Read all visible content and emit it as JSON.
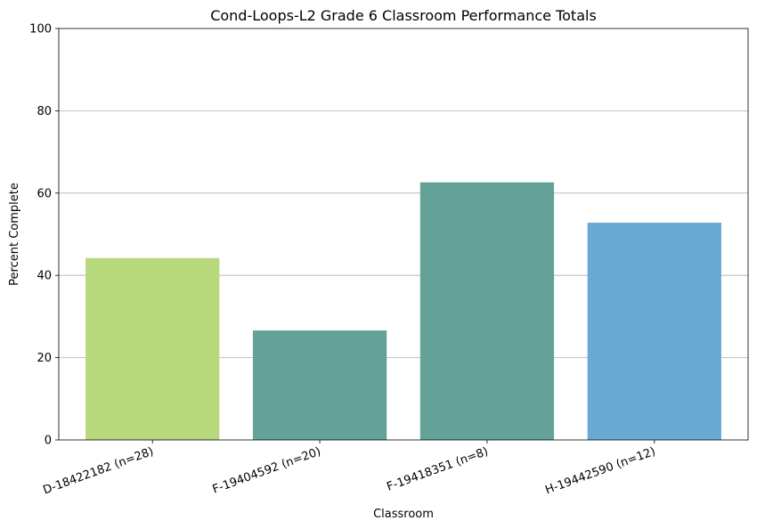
{
  "chart_data": {
    "type": "bar",
    "title": "Cond-Loops-L2 Grade 6 Classroom Performance Totals",
    "xlabel": "Classroom",
    "ylabel": "Percent Complete",
    "categories": [
      "D-18422182 (n=28)",
      "F-19404592 (n=20)",
      "F-19418351 (n=8)",
      "H-19442590 (n=12)"
    ],
    "values": [
      44.2,
      26.6,
      62.6,
      52.8
    ],
    "colors": [
      "#b8d87c",
      "#64a198",
      "#64a198",
      "#6ba9d5"
    ],
    "ylim": [
      0,
      100
    ],
    "yticks": [
      0,
      20,
      40,
      60,
      80,
      100
    ],
    "grid": "y",
    "legend": "none"
  }
}
